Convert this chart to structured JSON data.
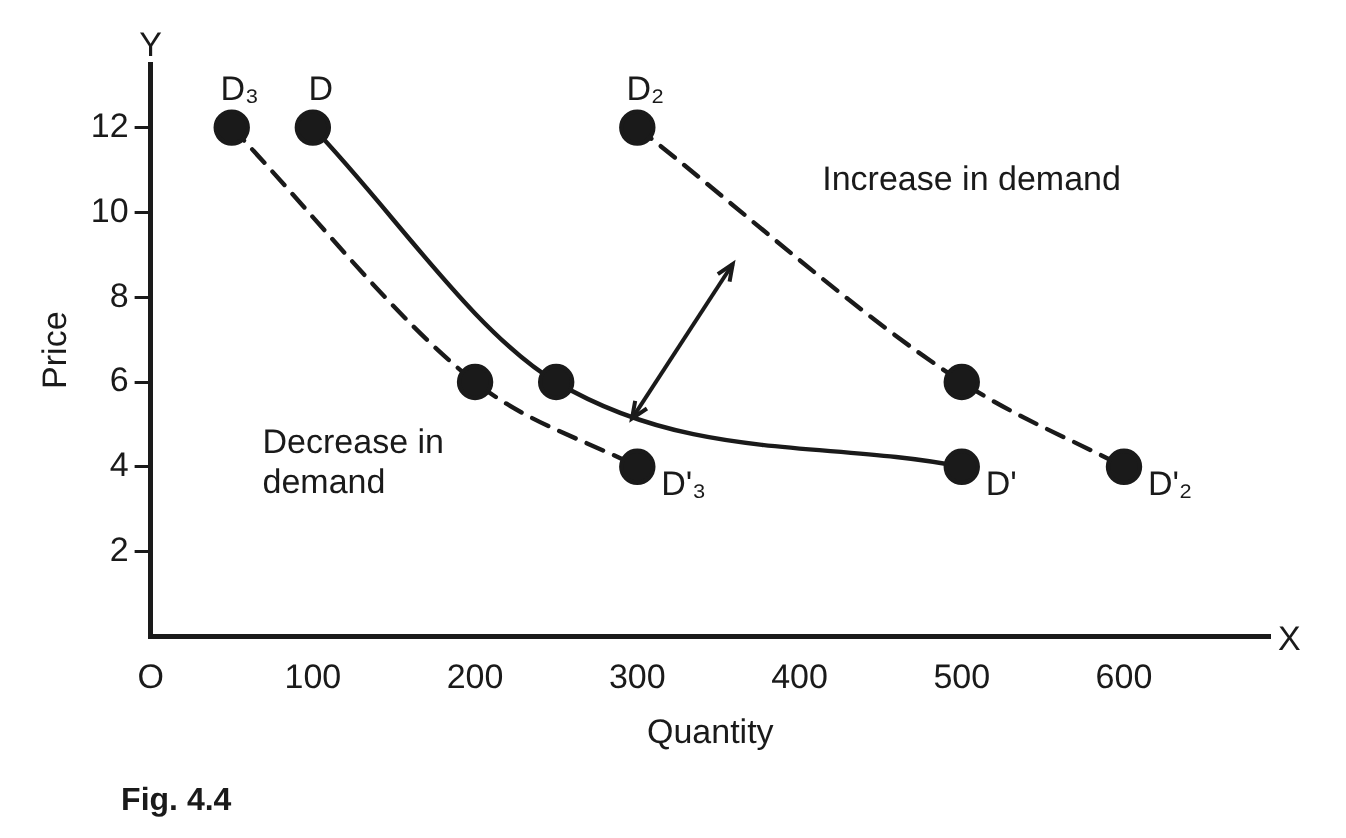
{
  "chart_data": {
    "type": "line",
    "xlabel": "Quantity",
    "ylabel": "Price",
    "marker": "circle",
    "grid": false,
    "legend": false,
    "xlim": [
      0,
      690
    ],
    "xticks": [
      {
        "value": 0,
        "label": "O"
      },
      100,
      200,
      300,
      400,
      500,
      600
    ],
    "ylim": [
      0,
      13.5
    ],
    "yticks": [
      2,
      4,
      6,
      8,
      10,
      12
    ],
    "series": [
      {
        "name": "D₃",
        "color": "#1a1a1a",
        "line_style": "dashed",
        "x": [
          50,
          200,
          300
        ],
        "values": [
          12,
          6,
          4
        ]
      },
      {
        "name": "D",
        "color": "#1a1a1a",
        "line_style": "solid",
        "x": [
          100,
          250,
          500
        ],
        "values": [
          12,
          6,
          4
        ]
      },
      {
        "name": "D₂",
        "color": "#1a1a1a",
        "line_style": "dashed",
        "x": [
          300,
          500,
          600
        ],
        "values": [
          12,
          6,
          4
        ]
      }
    ],
    "annotations": [
      {
        "text": "D'₃",
        "x": 300,
        "y": 4
      },
      {
        "text": "D'",
        "x": 500,
        "y": 4
      },
      {
        "text": "D'₂",
        "x": 600,
        "y": 4
      },
      "Increase in demand",
      "Decrease in demand",
      "Fig. 4.4",
      "X",
      "Y"
    ]
  }
}
